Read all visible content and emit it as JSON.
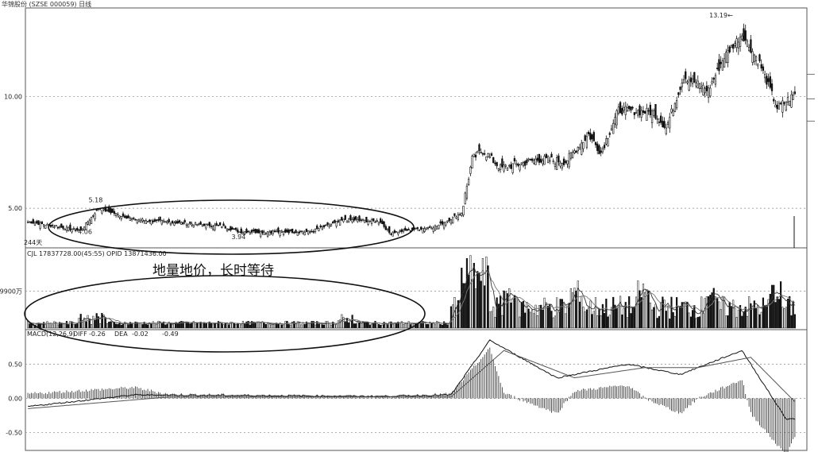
{
  "header": {
    "title": "华锦股份 (SZSE 000059) 日线"
  },
  "annotation": "地量地价，长时等待",
  "chart_data": [
    {
      "type": "candlestick",
      "panel": "price",
      "yticks": [
        5.0,
        10.0
      ],
      "ytick_labels": [
        "5.00",
        "10.00"
      ],
      "ylim": [
        3.3,
        13.9
      ],
      "grid": true,
      "labels": {
        "days": "244天",
        "low_a": "4.06",
        "high_a": "5.18",
        "low_b": "3.94",
        "peak": "13.19"
      },
      "consolidation_range": [
        3.94,
        5.18
      ],
      "key_points": [
        {
          "day": 0,
          "close": 4.4
        },
        {
          "day": 30,
          "close": 4.0
        },
        {
          "day": 40,
          "close": 5.0
        },
        {
          "day": 60,
          "close": 4.5
        },
        {
          "day": 110,
          "close": 4.2
        },
        {
          "day": 120,
          "close": 3.95
        },
        {
          "day": 160,
          "close": 3.95
        },
        {
          "day": 180,
          "close": 4.5
        },
        {
          "day": 200,
          "close": 4.4
        },
        {
          "day": 205,
          "close": 3.9
        },
        {
          "day": 232,
          "close": 4.2
        },
        {
          "day": 246,
          "close": 4.8
        },
        {
          "day": 252,
          "close": 7.2
        },
        {
          "day": 258,
          "close": 7.6
        },
        {
          "day": 268,
          "close": 6.8
        },
        {
          "day": 290,
          "close": 7.2
        },
        {
          "day": 305,
          "close": 7.1
        },
        {
          "day": 318,
          "close": 8.3
        },
        {
          "day": 325,
          "close": 7.5
        },
        {
          "day": 335,
          "close": 9.4
        },
        {
          "day": 355,
          "close": 9.3
        },
        {
          "day": 362,
          "close": 8.6
        },
        {
          "day": 372,
          "close": 10.9
        },
        {
          "day": 386,
          "close": 10.3
        },
        {
          "day": 395,
          "close": 11.8
        },
        {
          "day": 405,
          "close": 12.8
        },
        {
          "day": 415,
          "close": 11.5
        },
        {
          "day": 425,
          "close": 9.5
        },
        {
          "day": 435,
          "close": 10.1
        }
      ]
    },
    {
      "type": "bar",
      "panel": "volume",
      "header": [
        "CJL  17837728.00(45:55)",
        "OPID  13871436.00"
      ],
      "ytick_label": "9900万",
      "baseline_shape": "low in consolidation, spikes after breakout"
    },
    {
      "type": "line",
      "panel": "macd",
      "header": {
        "name": "MACD(12,26,9)",
        "diff_label": "DIFF",
        "diff": "-0.26",
        "dea_label": "DEA",
        "dea": "-0.02",
        "macd": "-0.49"
      },
      "yticks": [
        0.5,
        0.0,
        -0.5
      ],
      "ytick_labels": [
        "0.50",
        "0.00",
        "-0.50"
      ],
      "ylim": [
        -0.75,
        0.9
      ],
      "grid": true,
      "diff_key_points": [
        {
          "day": 0,
          "v": -0.12
        },
        {
          "day": 60,
          "v": 0.05
        },
        {
          "day": 200,
          "v": 0.03
        },
        {
          "day": 240,
          "v": 0.05
        },
        {
          "day": 262,
          "v": 0.85
        },
        {
          "day": 300,
          "v": 0.3
        },
        {
          "day": 340,
          "v": 0.5
        },
        {
          "day": 370,
          "v": 0.35
        },
        {
          "day": 405,
          "v": 0.7
        },
        {
          "day": 430,
          "v": -0.3
        }
      ],
      "dea_key_points": [
        {
          "day": 0,
          "v": -0.15
        },
        {
          "day": 80,
          "v": 0.02
        },
        {
          "day": 240,
          "v": 0.02
        },
        {
          "day": 270,
          "v": 0.7
        },
        {
          "day": 310,
          "v": 0.3
        },
        {
          "day": 350,
          "v": 0.45
        },
        {
          "day": 380,
          "v": 0.45
        },
        {
          "day": 410,
          "v": 0.6
        },
        {
          "day": 435,
          "v": -0.05
        }
      ]
    }
  ]
}
